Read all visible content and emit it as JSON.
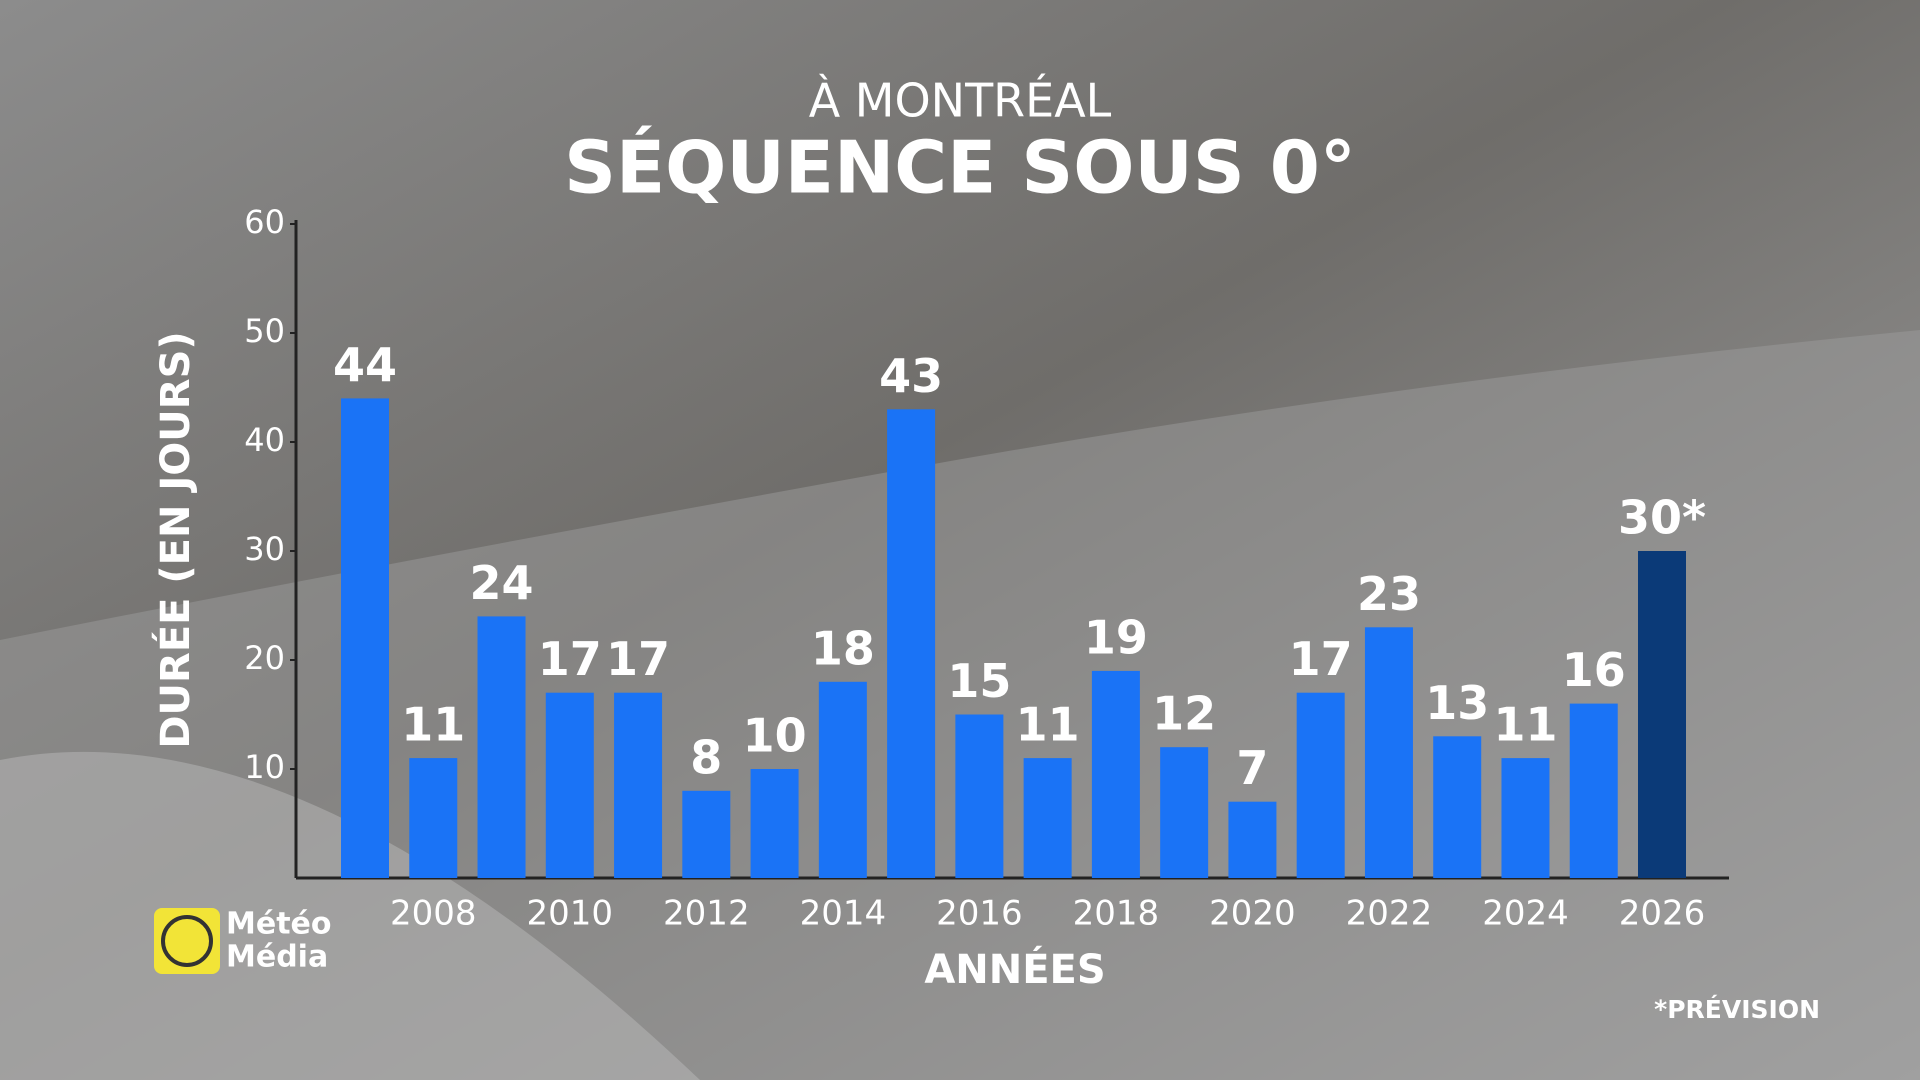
{
  "chart_data": {
    "type": "bar",
    "subtitle": "À MONTRÉAL",
    "title": "SÉQUENCE SOUS 0°",
    "y_label": "DURÉE (EN JOURS)",
    "x_label": "ANNÉES",
    "categories": [
      null,
      "2008",
      null,
      "2010",
      null,
      "2012",
      null,
      "2014",
      null,
      "2016",
      null,
      "2018",
      null,
      "2020",
      null,
      "2022",
      null,
      "2024",
      null,
      "2026"
    ],
    "values": [
      44,
      11,
      24,
      17,
      17,
      8,
      10,
      18,
      43,
      15,
      11,
      19,
      12,
      7,
      17,
      23,
      13,
      11,
      16,
      30
    ],
    "value_labels": [
      "44",
      "11",
      "24",
      "17",
      "17",
      "8",
      "10",
      "18",
      "43",
      "15",
      "11",
      "19",
      "12",
      "7",
      "17",
      "23",
      "13",
      "11",
      "16",
      "30*"
    ],
    "colors": [
      "#1a73f6",
      "#1a73f6",
      "#1a73f6",
      "#1a73f6",
      "#1a73f6",
      "#1a73f6",
      "#1a73f6",
      "#1a73f6",
      "#1a73f6",
      "#1a73f6",
      "#1a73f6",
      "#1a73f6",
      "#1a73f6",
      "#1a73f6",
      "#1a73f6",
      "#1a73f6",
      "#1a73f6",
      "#1a73f6",
      "#1a73f6",
      "#0b3a78"
    ],
    "ylim": [
      0,
      60
    ],
    "yticks": [
      10,
      20,
      30,
      40,
      50,
      60
    ],
    "note": "*PRÉVISION"
  },
  "brand": {
    "line1": "Météo",
    "line2": "Média"
  }
}
